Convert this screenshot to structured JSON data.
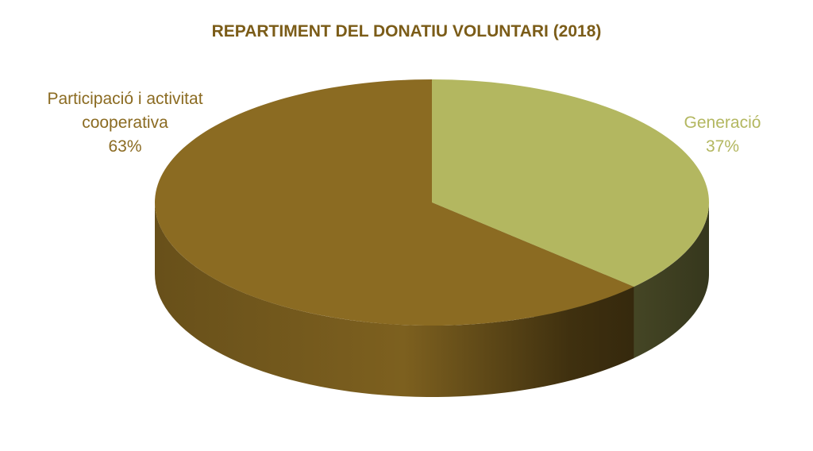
{
  "chart_data": {
    "type": "pie",
    "title": "REPARTIMENT DEL DONATIU VOLUNTARI (2018)",
    "categories": [
      "Generació",
      "Participació i activitat cooperativa"
    ],
    "values": [
      37,
      63
    ],
    "value_labels": [
      "37%",
      "63%"
    ],
    "colors": [
      "#b3b760",
      "#8b6b22"
    ]
  }
}
